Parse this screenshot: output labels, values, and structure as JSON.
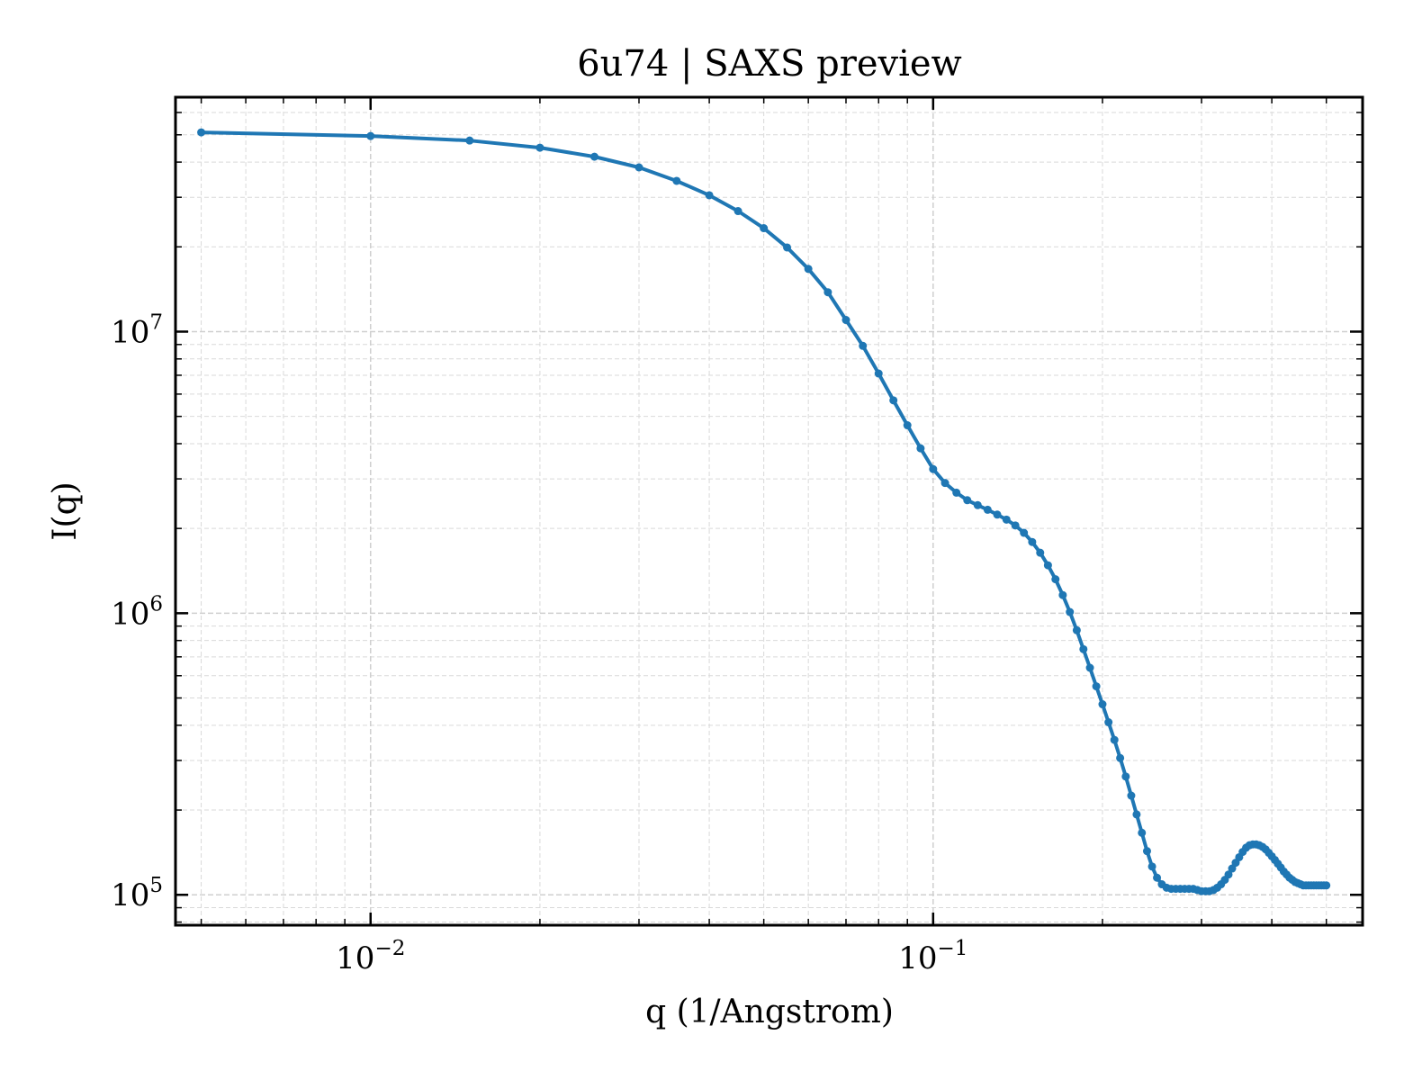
{
  "chart_data": {
    "type": "line",
    "title": "6u74 | SAXS preview",
    "xlabel": "q (1/Angstrom)",
    "ylabel": "I(q)",
    "xscale": "log",
    "yscale": "log",
    "xlim": [
      0.0045,
      0.58
    ],
    "ylim": [
      78000,
      68000000
    ],
    "grid": true,
    "grid_minor": true,
    "legend": "none",
    "colors": {
      "series": "#1f77b4",
      "grid": "#d9d9d9",
      "axes": "#000000"
    },
    "xticks": [
      {
        "value": 0.01,
        "base": "10",
        "exp": "−2"
      },
      {
        "value": 0.1,
        "base": "10",
        "exp": "−1"
      }
    ],
    "yticks": [
      {
        "value": 100000,
        "base": "10",
        "exp": "5"
      },
      {
        "value": 1000000,
        "base": "10",
        "exp": "6"
      },
      {
        "value": 10000000,
        "base": "10",
        "exp": "7"
      }
    ],
    "series": [
      {
        "x": [
          0.005,
          0.01,
          0.015,
          0.02,
          0.025,
          0.03,
          0.035,
          0.04,
          0.045,
          0.05,
          0.055,
          0.06,
          0.065,
          0.07,
          0.075,
          0.08,
          0.085,
          0.09,
          0.095,
          0.1,
          0.105,
          0.11,
          0.115,
          0.12,
          0.125,
          0.13,
          0.135,
          0.14,
          0.145,
          0.15,
          0.155,
          0.16,
          0.165,
          0.17,
          0.175,
          0.18,
          0.185,
          0.19,
          0.195,
          0.2,
          0.205,
          0.21,
          0.215,
          0.22,
          0.225,
          0.23,
          0.235,
          0.24,
          0.245,
          0.25,
          0.255,
          0.26,
          0.265,
          0.27,
          0.275,
          0.28,
          0.285,
          0.29,
          0.295,
          0.3,
          0.305,
          0.31,
          0.315,
          0.32,
          0.325,
          0.33,
          0.335,
          0.34,
          0.345,
          0.35,
          0.355,
          0.36,
          0.365,
          0.37,
          0.375,
          0.38,
          0.385,
          0.39,
          0.395,
          0.4,
          0.405,
          0.41,
          0.415,
          0.42,
          0.425,
          0.43,
          0.435,
          0.44,
          0.445,
          0.45,
          0.455,
          0.46,
          0.465,
          0.47,
          0.475,
          0.48,
          0.485,
          0.49,
          0.495,
          0.5
        ],
        "y": [
          51000000,
          49500000,
          47700000,
          45000000,
          41800000,
          38300000,
          34300000,
          30500000,
          26800000,
          23300000,
          19900000,
          16700000,
          13800000,
          11000000,
          8900000,
          7100000,
          5700000,
          4650000,
          3850000,
          3250000,
          2900000,
          2680000,
          2520000,
          2420000,
          2330000,
          2240000,
          2150000,
          2050000,
          1930000,
          1790000,
          1640000,
          1480000,
          1320000,
          1160000,
          1010000,
          870000,
          745000,
          640000,
          550000,
          475000,
          410000,
          355000,
          306000,
          263000,
          225000,
          193000,
          166000,
          143000,
          126000,
          115000,
          109000,
          106000,
          105000,
          105000,
          105000,
          105000,
          105000,
          105000,
          104000,
          103000,
          103000,
          103000,
          104000,
          106000,
          109000,
          113000,
          118000,
          124000,
          130000,
          136000,
          142000,
          147000,
          150000,
          151000,
          151000,
          150000,
          148000,
          145000,
          141000,
          137000,
          133000,
          129000,
          125000,
          121000,
          118000,
          115000,
          113000,
          111000,
          110000,
          109000,
          108000,
          108000,
          108000,
          108000,
          108000,
          108000,
          108000,
          108000,
          108000,
          108000
        ]
      }
    ]
  }
}
